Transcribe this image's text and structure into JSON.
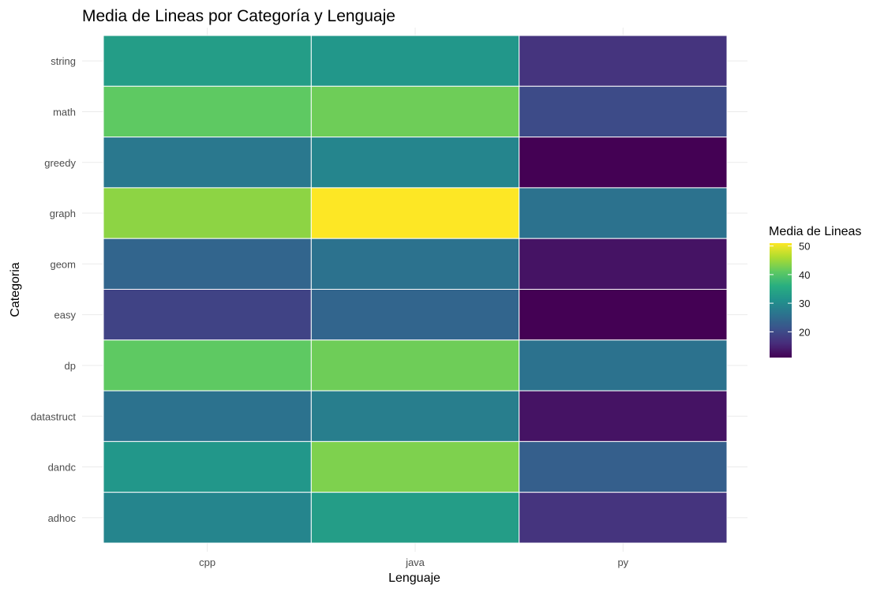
{
  "chart_data": {
    "type": "heatmap",
    "title": "Media de Lineas por Categoría y Lenguaje",
    "xlabel": "Lenguaje",
    "ylabel": "Categoria",
    "x_categories": [
      "cpp",
      "java",
      "py"
    ],
    "y_categories": [
      "string",
      "math",
      "greedy",
      "graph",
      "geom",
      "easy",
      "dp",
      "datastruct",
      "dandc",
      "adhoc"
    ],
    "values": [
      [
        33,
        32,
        17
      ],
      [
        41,
        42,
        20
      ],
      [
        27,
        29,
        11
      ],
      [
        44,
        51,
        26
      ],
      [
        24,
        26,
        13
      ],
      [
        19,
        24,
        11
      ],
      [
        41,
        42,
        26
      ],
      [
        26,
        28,
        13
      ],
      [
        32,
        43,
        23
      ],
      [
        29,
        33,
        17
      ]
    ],
    "legend": {
      "title": "Media de Lineas",
      "ticks": [
        20,
        30,
        40,
        50
      ],
      "range": [
        11,
        51
      ],
      "colormap": "viridis",
      "placement": "right"
    },
    "grid": true
  }
}
